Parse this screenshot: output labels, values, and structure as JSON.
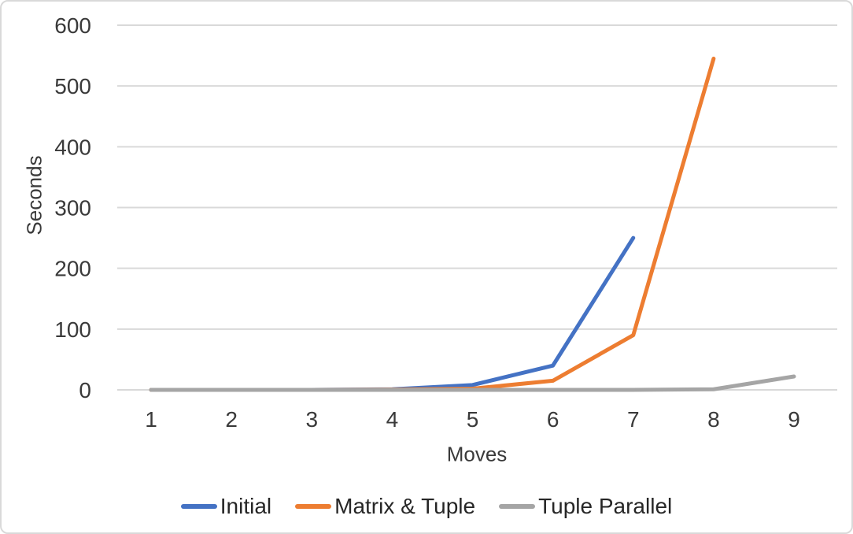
{
  "chart_data": {
    "type": "line",
    "title": "",
    "xlabel": "Moves",
    "ylabel": "Seconds",
    "x_ticks": [
      1,
      2,
      3,
      4,
      5,
      6,
      7,
      8,
      9
    ],
    "y_ticks": [
      0,
      100,
      200,
      300,
      400,
      500,
      600
    ],
    "xlim": [
      1,
      9
    ],
    "ylim": [
      0,
      600
    ],
    "grid": true,
    "legend_position": "bottom",
    "series": [
      {
        "name": "Initial",
        "color": "#4472C4",
        "x": [
          1,
          2,
          3,
          4,
          5,
          6,
          7
        ],
        "values": [
          0,
          0,
          0,
          1,
          8,
          40,
          250
        ]
      },
      {
        "name": "Matrix & Tuple",
        "color": "#ED7D31",
        "x": [
          1,
          2,
          3,
          4,
          5,
          6,
          7,
          8
        ],
        "values": [
          0,
          0,
          0,
          0.5,
          2,
          15,
          90,
          545
        ]
      },
      {
        "name": "Tuple Parallel",
        "color": "#A5A5A5",
        "x": [
          1,
          2,
          3,
          4,
          5,
          6,
          7,
          8,
          9
        ],
        "values": [
          0,
          0,
          0,
          0,
          0,
          0,
          0,
          1,
          22
        ]
      }
    ]
  },
  "colors": {
    "grid": "#D9D9D9",
    "axis_text": "#3A3A3A",
    "legend_text": "#262626",
    "frame_border": "#D9D9D9",
    "background": "#FFFFFF"
  }
}
